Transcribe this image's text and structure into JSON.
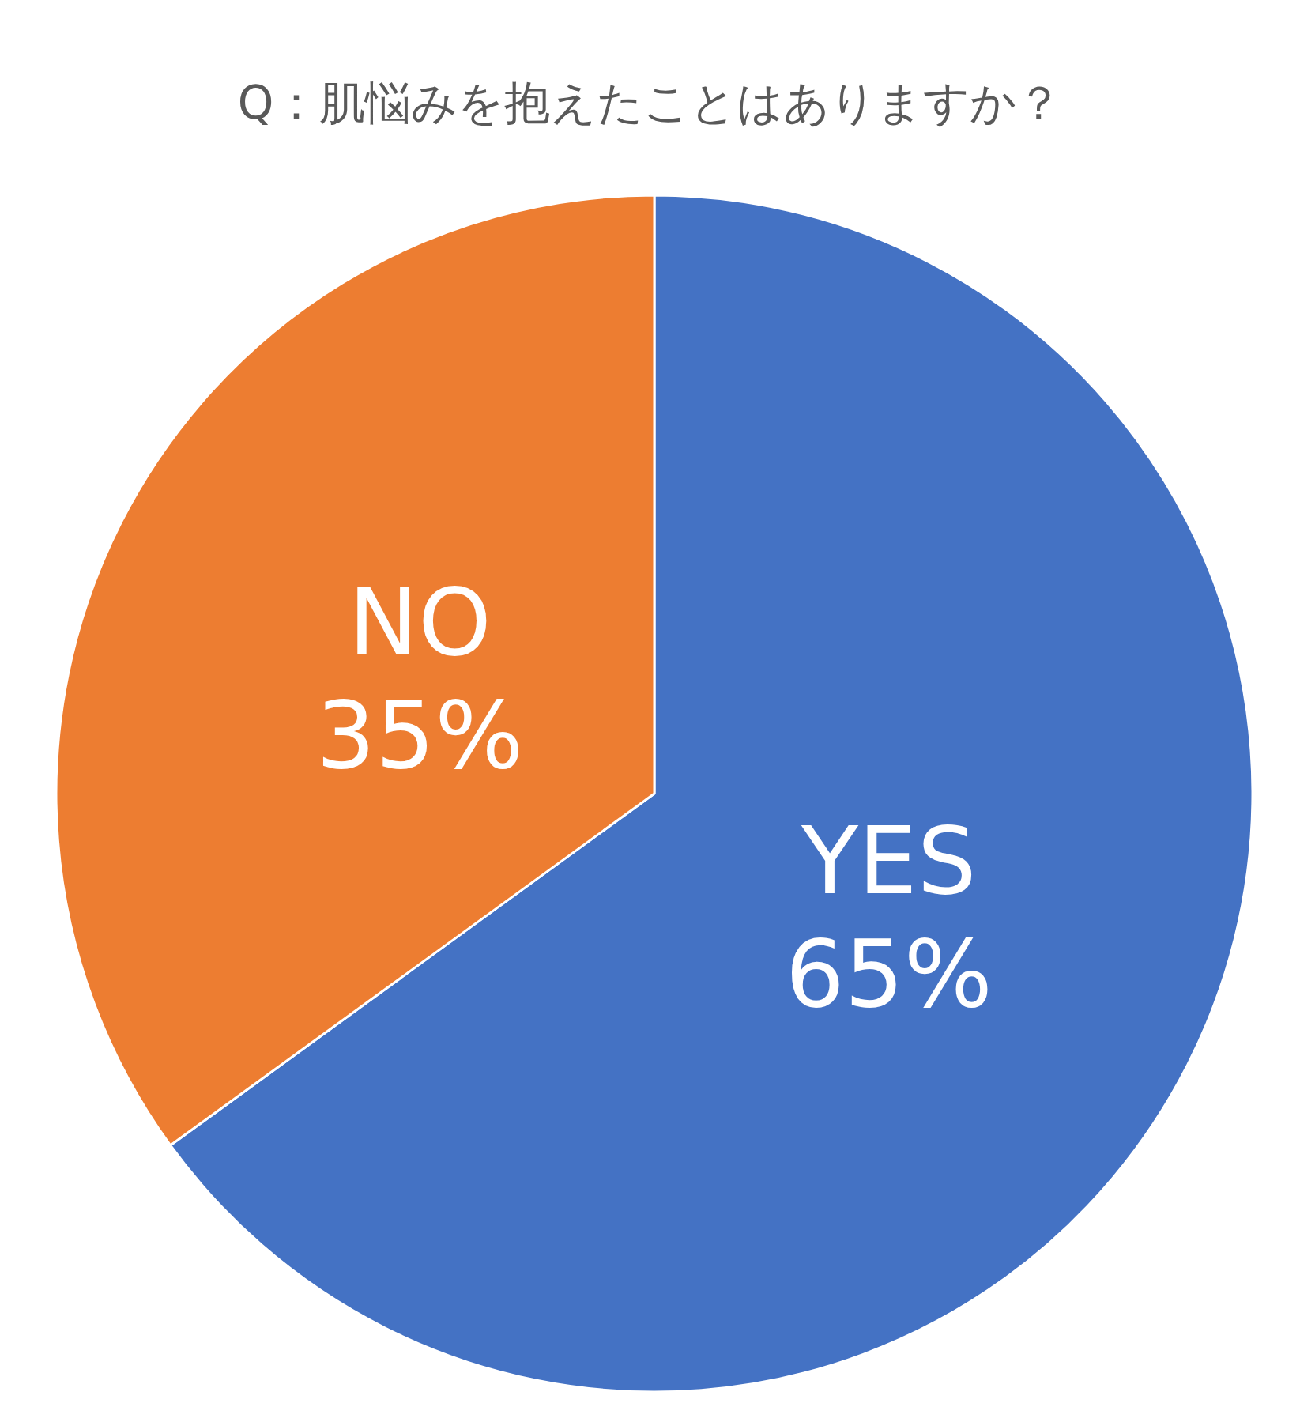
{
  "chart_data": {
    "type": "pie",
    "title": "Q：肌悩みを抱えたことはありますか？",
    "categories": [
      "YES",
      "NO"
    ],
    "values": [
      65,
      35
    ],
    "colors": [
      "#4472c4",
      "#ed7d31"
    ],
    "value_labels": [
      "65%",
      "35%"
    ],
    "legend": false
  }
}
